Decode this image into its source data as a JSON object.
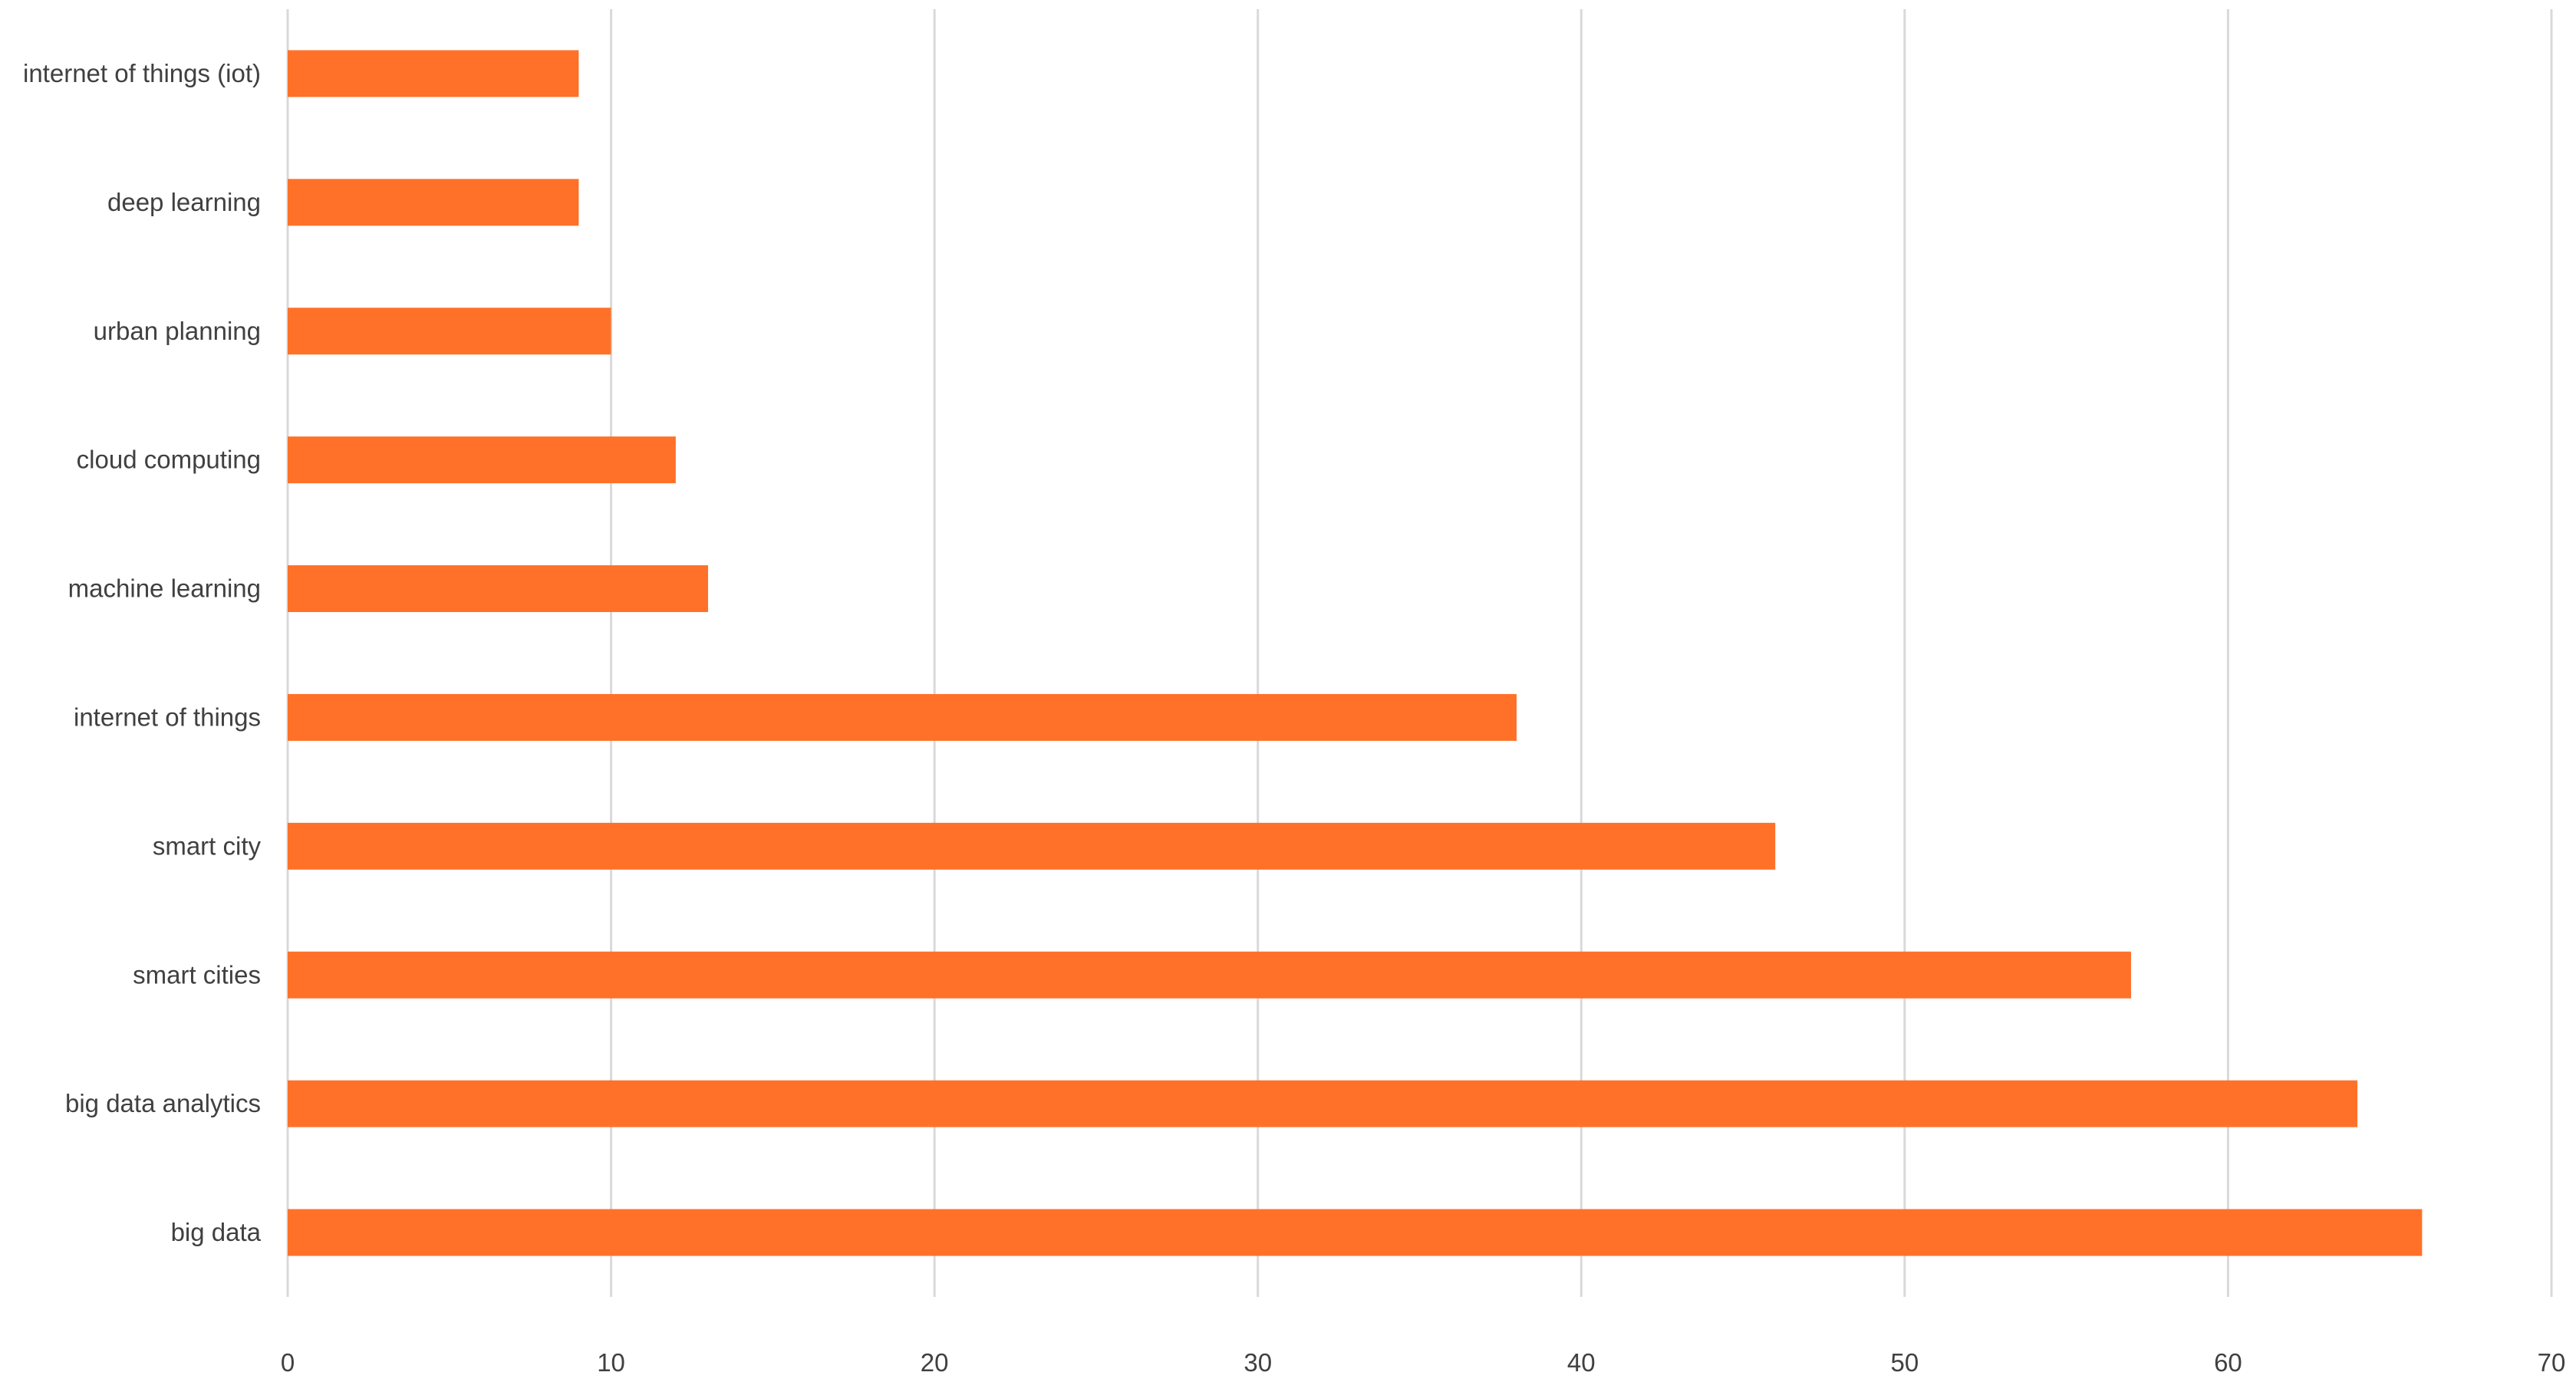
{
  "chart_data": {
    "type": "bar",
    "orientation": "horizontal",
    "categories": [
      "internet of things (iot)",
      "deep learning",
      "urban planning",
      "cloud computing",
      "machine learning",
      "internet of things",
      "smart city",
      "smart cities",
      "big data analytics",
      "big data"
    ],
    "values": [
      9,
      9,
      10,
      12,
      13,
      38,
      46,
      57,
      64,
      66
    ],
    "title": "",
    "xlabel": "",
    "ylabel": "",
    "xlim": [
      0,
      70
    ],
    "x_ticks": [
      "0",
      "10",
      "20",
      "30",
      "40",
      "50",
      "60",
      "70"
    ],
    "grid": "vertical",
    "legend": "none",
    "bar_color": "#ff7128"
  }
}
